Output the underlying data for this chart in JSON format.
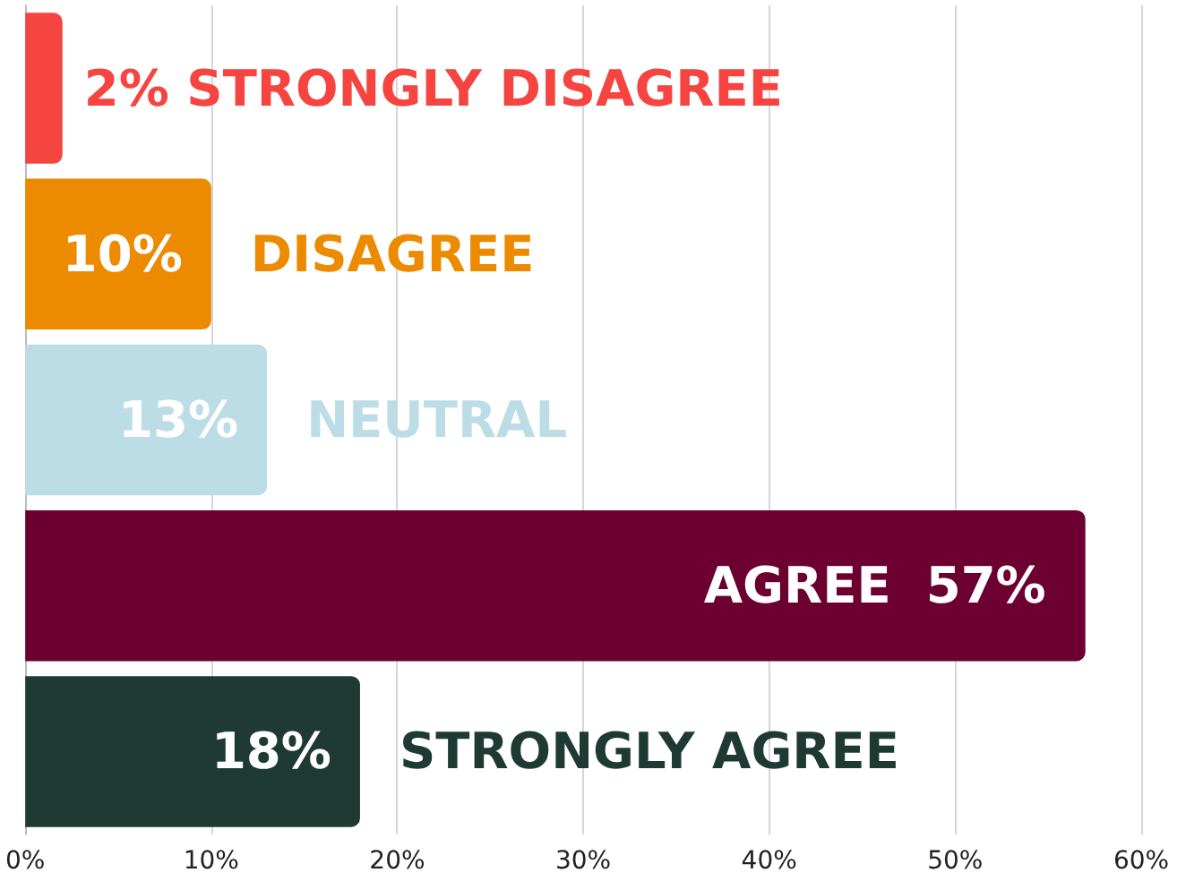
{
  "chart_data": {
    "type": "bar",
    "orientation": "horizontal",
    "categories": [
      "STRONGLY DISAGREE",
      "DISAGREE",
      "NEUTRAL",
      "AGREE",
      "STRONGLY AGREE"
    ],
    "values": [
      2,
      10,
      13,
      57,
      18
    ],
    "colors": [
      "#f64440",
      "#ec8a00",
      "#bcdde6",
      "#6c0030",
      "#1f3a32"
    ],
    "value_labels": [
      "2%",
      "10%",
      "13%",
      "57%",
      "18%"
    ],
    "xlim": [
      0,
      60
    ],
    "xticks": [
      {
        "value": 0,
        "label": "0%"
      },
      {
        "value": 10,
        "label": "10%"
      },
      {
        "value": 20,
        "label": "20%"
      },
      {
        "value": 30,
        "label": "30%"
      },
      {
        "value": 40,
        "label": "40%"
      },
      {
        "value": 50,
        "label": "50%"
      },
      {
        "value": 60,
        "label": "60%"
      }
    ],
    "grid": "x",
    "tick_labels": "x"
  }
}
